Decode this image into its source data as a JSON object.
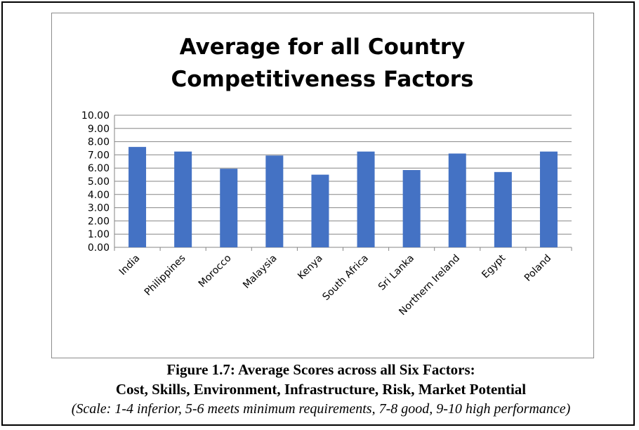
{
  "chart_data": {
    "type": "bar",
    "title_lines": [
      "Average for all Country",
      "Competitiveness Factors"
    ],
    "categories": [
      "India",
      "Philippines",
      "Morocco",
      "Malaysia",
      "Kenya",
      "South Africa",
      "Sri Lanka",
      "Northern Ireland",
      "Egypt",
      "Poland"
    ],
    "values": [
      7.6,
      7.25,
      5.95,
      6.95,
      5.5,
      7.25,
      5.85,
      7.1,
      5.7,
      7.25
    ],
    "ylim": [
      0,
      10
    ],
    "yticks": [
      "0.00",
      "1.00",
      "2.00",
      "3.00",
      "4.00",
      "5.00",
      "6.00",
      "7.00",
      "8.00",
      "9.00",
      "10.00"
    ],
    "xlabel": "",
    "ylabel": "",
    "grid": true,
    "bar_color": "#4472C4",
    "grid_color": "#868686"
  },
  "caption": {
    "line1": "Figure 1.7:  Average Scores across all Six Factors:",
    "line2": "Cost, Skills, Environment, Infrastructure, Risk, Market Potential",
    "line3": "(Scale: 1-4 inferior, 5-6 meets minimum requirements, 7-8 good, 9-10 high performance)"
  }
}
